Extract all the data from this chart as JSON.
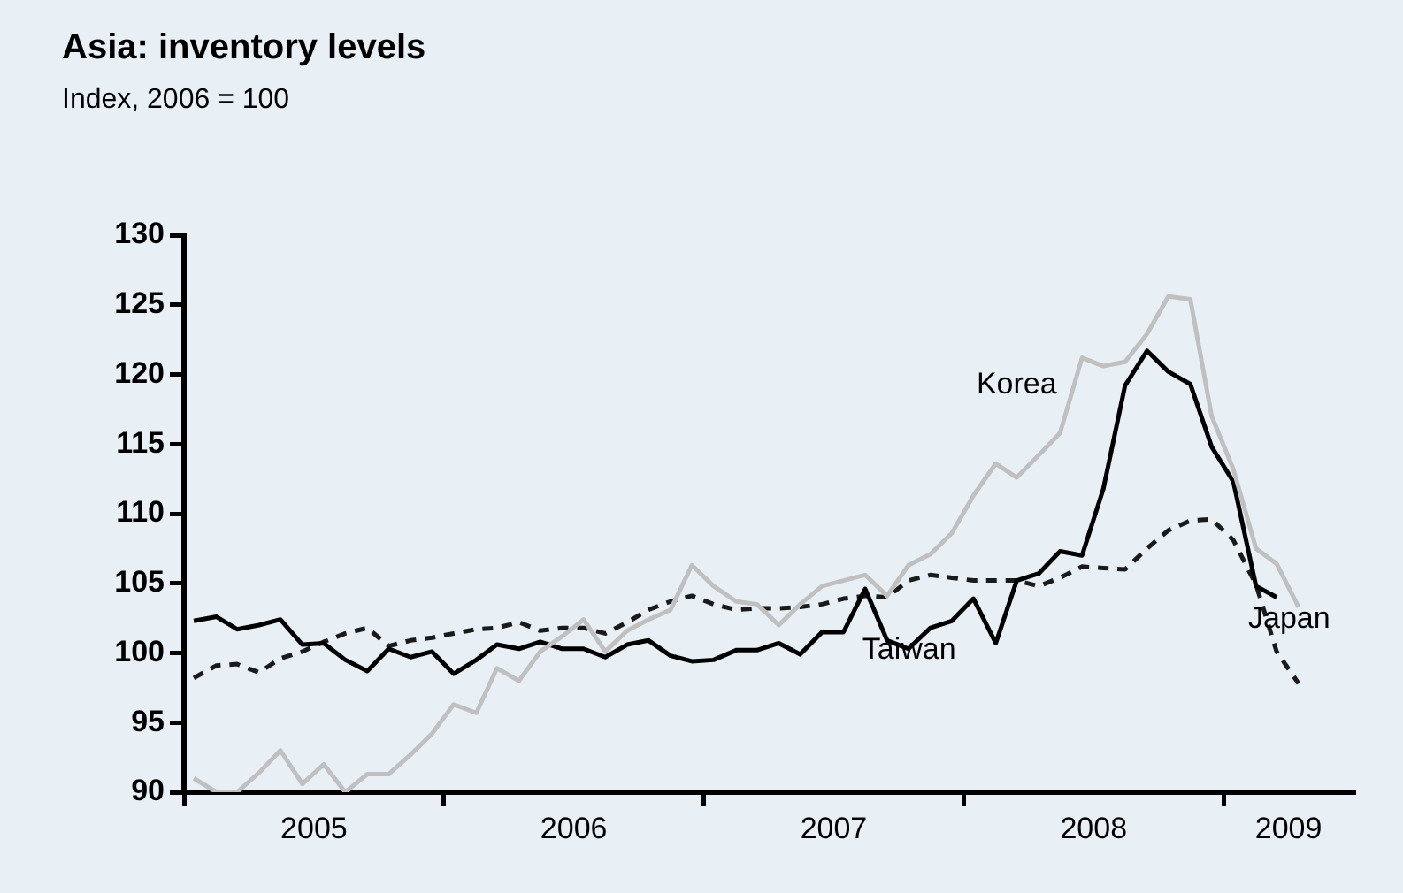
{
  "chart_data": {
    "type": "line",
    "title": "Asia: inventory levels",
    "subtitle": "Index, 2006 = 100",
    "x": [
      "2005-01-15",
      "2005-02-15",
      "2005-03-15",
      "2005-04-15",
      "2005-05-15",
      "2005-06-15",
      "2005-07-15",
      "2005-08-15",
      "2005-09-15",
      "2005-10-15",
      "2005-11-15",
      "2005-12-15",
      "2006-01-15",
      "2006-02-15",
      "2006-03-15",
      "2006-04-15",
      "2006-05-15",
      "2006-06-15",
      "2006-07-15",
      "2006-08-15",
      "2006-09-15",
      "2006-10-15",
      "2006-11-15",
      "2006-12-15",
      "2007-01-15",
      "2007-02-15",
      "2007-03-15",
      "2007-04-15",
      "2007-05-15",
      "2007-06-15",
      "2007-07-15",
      "2007-08-15",
      "2007-09-15",
      "2007-10-15",
      "2007-11-15",
      "2007-12-15",
      "2008-01-15",
      "2008-02-15",
      "2008-03-15",
      "2008-04-15",
      "2008-05-15",
      "2008-06-15",
      "2008-07-15",
      "2008-08-15",
      "2008-09-15",
      "2008-10-15",
      "2008-11-15",
      "2008-12-15",
      "2009-01-15",
      "2009-02-15",
      "2009-03-15",
      "2009-04-15"
    ],
    "series": [
      {
        "name": "Korea",
        "color": "#c0c0c0",
        "line_style": "solid",
        "values": [
          91.0,
          90.0,
          90.0,
          91.4,
          93.0,
          90.6,
          92.0,
          90.0,
          91.3,
          91.3,
          92.7,
          94.2,
          96.3,
          95.7,
          98.9,
          98.0,
          100.1,
          101.2,
          102.4,
          100.1,
          101.6,
          102.4,
          103.1,
          106.3,
          104.8,
          103.7,
          103.5,
          102.0,
          103.5,
          104.8,
          105.2,
          105.6,
          104.1,
          106.3,
          107.1,
          108.6,
          111.3,
          113.6,
          112.6,
          114.2,
          115.8,
          121.2,
          120.6,
          120.9,
          122.9,
          125.6,
          125.4,
          117.0,
          113.2,
          107.5,
          106.4,
          103.3
        ]
      },
      {
        "name": "Taiwan",
        "color": "#000000",
        "line_style": "solid",
        "values": [
          102.3,
          102.6,
          101.7,
          102.0,
          102.4,
          100.6,
          100.7,
          99.5,
          98.7,
          100.3,
          99.7,
          100.1,
          98.5,
          99.5,
          100.6,
          100.3,
          100.8,
          100.3,
          100.3,
          99.7,
          100.6,
          100.9,
          99.8,
          99.4,
          99.5,
          100.2,
          100.2,
          100.7,
          99.9,
          101.5,
          101.5,
          104.6,
          100.9,
          100.3,
          101.8,
          102.3,
          103.9,
          100.7,
          105.2,
          105.7,
          107.3,
          107.0,
          111.8,
          119.2,
          121.7,
          120.2,
          119.3,
          114.8,
          112.3,
          104.8,
          104.0,
          null
        ]
      },
      {
        "name": "Japan",
        "color": "#1a1a1a",
        "line_style": "dashed",
        "values": [
          98.2,
          99.1,
          99.2,
          98.6,
          99.6,
          100.1,
          100.8,
          101.4,
          101.8,
          100.5,
          100.9,
          101.1,
          101.4,
          101.7,
          101.8,
          102.2,
          101.6,
          101.8,
          101.8,
          101.4,
          102.2,
          103.1,
          103.7,
          104.1,
          103.5,
          103.1,
          103.2,
          103.2,
          103.3,
          103.5,
          103.9,
          104.1,
          104.0,
          105.2,
          105.6,
          105.4,
          105.2,
          105.2,
          105.2,
          104.8,
          105.4,
          106.2,
          106.1,
          106.0,
          107.5,
          108.8,
          109.5,
          109.6,
          108.1,
          104.9,
          100.1,
          97.8
        ]
      }
    ],
    "xlim": [
      "2005-01-01",
      "2009-07-01"
    ],
    "xticks": [
      {
        "value": "2005-01-01",
        "label": null
      },
      {
        "value": "2005-07-01",
        "label": "2005"
      },
      {
        "value": "2006-01-01",
        "label": null
      },
      {
        "value": "2006-07-01",
        "label": "2006"
      },
      {
        "value": "2007-01-01",
        "label": null
      },
      {
        "value": "2007-07-01",
        "label": "2007"
      },
      {
        "value": "2008-01-01",
        "label": null
      },
      {
        "value": "2008-07-01",
        "label": "2008"
      },
      {
        "value": "2009-01-01",
        "label": null
      },
      {
        "value": "2009-04-01",
        "label": "2009"
      }
    ],
    "ylim": [
      90,
      130
    ],
    "yticks": [
      90,
      95,
      100,
      105,
      110,
      115,
      120,
      125,
      130
    ],
    "grid": false,
    "legend": false
  }
}
